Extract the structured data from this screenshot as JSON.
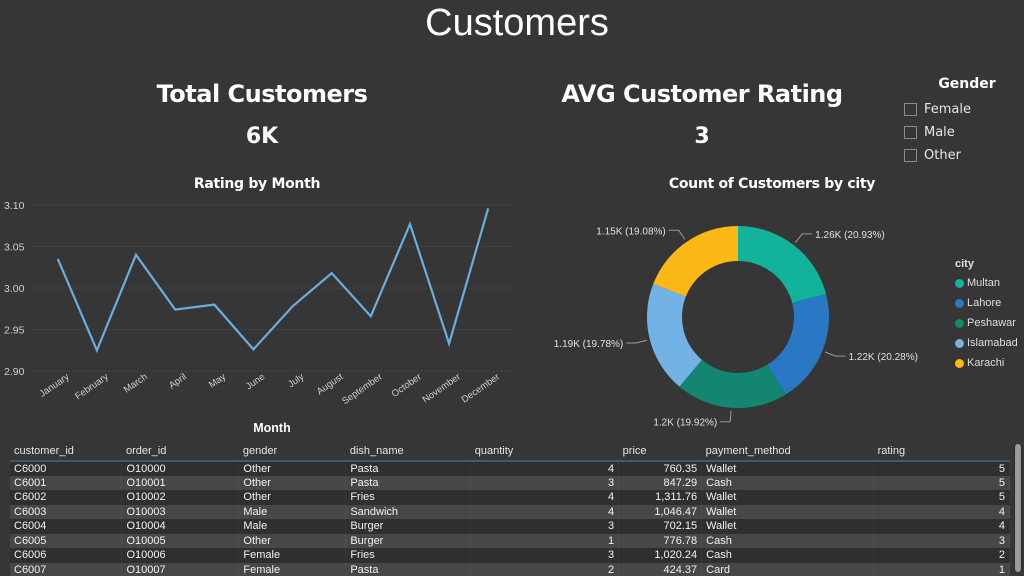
{
  "header": {
    "title": "Customers"
  },
  "kpis": [
    {
      "label": "Total Customers",
      "value": "6K"
    },
    {
      "label": "AVG Customer Rating",
      "value": "3"
    }
  ],
  "gender_slicer": {
    "title": "Gender",
    "options": [
      {
        "label": "Female",
        "checked": false
      },
      {
        "label": "Male",
        "checked": false
      },
      {
        "label": "Other",
        "checked": false
      }
    ]
  },
  "chart_data": [
    {
      "type": "line",
      "title": "Rating by Month",
      "xlabel": "Month",
      "ylabel": "",
      "categories": [
        "January",
        "February",
        "March",
        "April",
        "May",
        "June",
        "July",
        "August",
        "September",
        "October",
        "November",
        "December"
      ],
      "values": [
        3.035,
        2.925,
        3.04,
        2.974,
        2.98,
        2.926,
        2.978,
        3.018,
        2.966,
        3.077,
        2.933,
        3.096
      ],
      "ylim": [
        2.9,
        3.1
      ],
      "yticks": [
        "3.10",
        "3.05",
        "3.00",
        "2.95",
        "2.90"
      ],
      "ytick_values": [
        3.1,
        3.05,
        3.0,
        2.95,
        2.9
      ],
      "grid": true,
      "color": "#6aaee0"
    },
    {
      "type": "pie",
      "donut": true,
      "title": "Count of Customers by city",
      "legend_title": "city",
      "legend_position": "right",
      "slices": [
        {
          "name": "Multan",
          "value": 1.26,
          "label": "1.26K (20.93%)",
          "percent": 20.93,
          "color": "#12b39a"
        },
        {
          "name": "Lahore",
          "value": 1.22,
          "label": "1.22K (20.28%)",
          "percent": 20.28,
          "color": "#2a77c4"
        },
        {
          "name": "Peshawar",
          "value": 1.2,
          "label": "1.2K (19.92%)",
          "percent": 19.92,
          "color": "#138571"
        },
        {
          "name": "Islamabad",
          "value": 1.19,
          "label": "1.19K (19.78%)",
          "percent": 19.78,
          "color": "#72b2e4"
        },
        {
          "name": "Karachi",
          "value": 1.15,
          "label": "1.15K (19.08%)",
          "percent": 19.08,
          "color": "#fcb817"
        }
      ]
    }
  ],
  "table": {
    "columns": [
      "customer_id",
      "order_id",
      "gender",
      "dish_name",
      "quantity",
      "price",
      "payment_method",
      "rating"
    ],
    "rows": [
      [
        "C6000",
        "O10000",
        "Other",
        "Pasta",
        "4",
        "760.35",
        "Wallet",
        "5"
      ],
      [
        "C6001",
        "O10001",
        "Other",
        "Pasta",
        "3",
        "847.29",
        "Cash",
        "5"
      ],
      [
        "C6002",
        "O10002",
        "Other",
        "Fries",
        "4",
        "1,311.76",
        "Wallet",
        "5"
      ],
      [
        "C6003",
        "O10003",
        "Male",
        "Sandwich",
        "4",
        "1,046.47",
        "Wallet",
        "4"
      ],
      [
        "C6004",
        "O10004",
        "Male",
        "Burger",
        "3",
        "702.15",
        "Wallet",
        "4"
      ],
      [
        "C6005",
        "O10005",
        "Other",
        "Burger",
        "1",
        "776.78",
        "Cash",
        "3"
      ],
      [
        "C6006",
        "O10006",
        "Female",
        "Fries",
        "3",
        "1,020.24",
        "Cash",
        "2"
      ],
      [
        "C6007",
        "O10007",
        "Female",
        "Pasta",
        "2",
        "424.37",
        "Card",
        "1"
      ]
    ]
  }
}
